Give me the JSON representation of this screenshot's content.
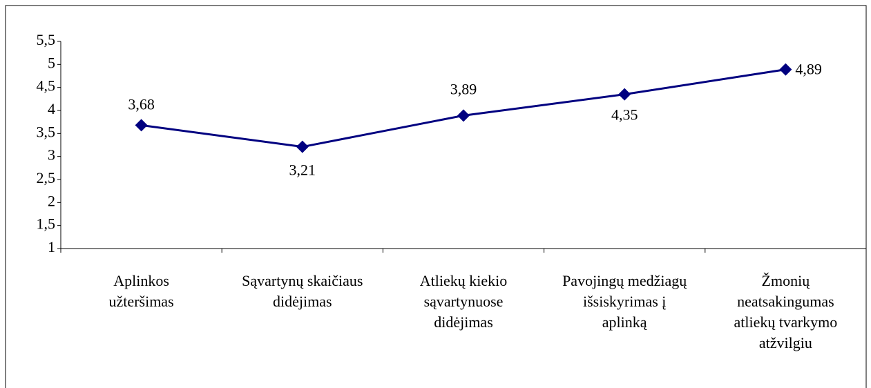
{
  "chart_data": {
    "type": "line",
    "categories": [
      "Aplinkos\nužteršimas",
      "Sąvartynų skaičiaus\ndidėjimas",
      "Atliekų kiekio\nsąvartynuose\ndidėjimas",
      "Pavojingų medžiagų\nišsiskyrimas į\naplinką",
      "Žmonių\nneatsakingumas\natliekų tvarkymo\natžvilgiu"
    ],
    "series": [
      {
        "color": "#000080",
        "values": [
          3.68,
          3.21,
          3.89,
          4.35,
          4.89
        ],
        "value_labels": [
          "3,68",
          "3,21",
          "3,89",
          "4,35",
          "4,89"
        ]
      }
    ],
    "ylim": [
      1,
      5.5
    ],
    "yticks": [
      1,
      {
        "value": 1.5,
        "label": "1,5"
      },
      2,
      {
        "value": 2.5,
        "label": "2,5"
      },
      3,
      {
        "value": 3.5,
        "label": "3,5"
      },
      4,
      {
        "value": 4.5,
        "label": "4,5"
      },
      5,
      {
        "value": 5.5,
        "label": "5,5"
      }
    ]
  }
}
